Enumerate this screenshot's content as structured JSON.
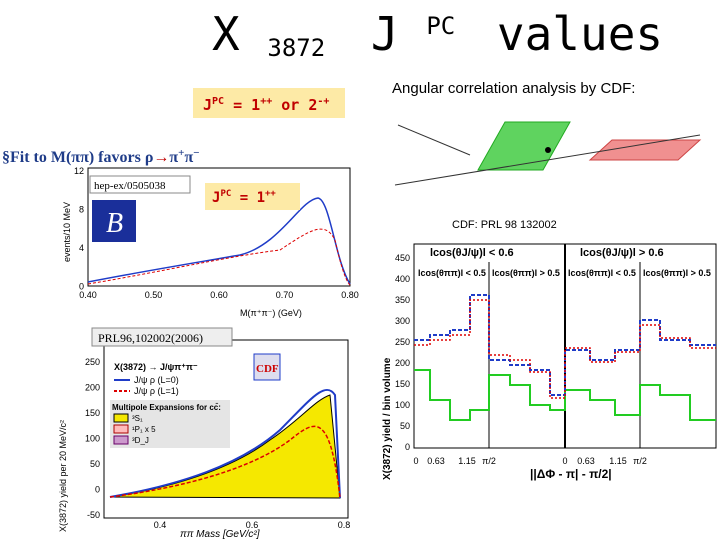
{
  "title": {
    "x": "X",
    "subscript": "3872",
    "j": "J",
    "superscript": "PC",
    "rest": "values"
  },
  "jpc_box": {
    "j": "J",
    "pc": "PC",
    "eq": " = 1",
    "pp": "++",
    "or": " or 2",
    "mp": "-+"
  },
  "angular_caption": "Angular correlation analysis by CDF:",
  "fit_text": {
    "lead": "§Fit to M(ππ) favors ρ",
    "arrow": "→",
    "pi": "π",
    "plus": "+",
    "pi2": "π",
    "minus": "−"
  },
  "plot1": {
    "ref": "hep-ex/0505038",
    "jpc": {
      "j": "J",
      "pc": "PC",
      "eq": " = 1",
      "pp": "++"
    },
    "ylabel": "events/10 MeV",
    "xlabel": "M(π⁺π⁻) (GeV)",
    "yticks": [
      "12",
      "8",
      "4",
      "0"
    ],
    "xticks": [
      "0.40",
      "0.50",
      "0.60",
      "0.70",
      "0.80"
    ]
  },
  "plot2": {
    "ref": "PRL96,102002(2006)",
    "legend_title": "X(3872) → J/ψπ⁺π⁻",
    "legend": [
      "J/ψ ρ (L=0)",
      "J/ψ ρ (L=1)"
    ],
    "multipole": "Multipole Expansions for cc̄:",
    "items": [
      "³S₁",
      "¹P₁ x 5",
      "³D_J"
    ],
    "logo": "CDF",
    "ylabel": "X(3872) yield per 20 MeV/c²",
    "xlabel": "ππ Mass [GeV/c²]",
    "yticks": [
      "250",
      "200",
      "150",
      "100",
      "50",
      "0",
      "-50"
    ],
    "xticks": [
      "0.4",
      "0.6",
      "0.8"
    ]
  },
  "plot3": {
    "caption": "CDF: PRL 98 132002",
    "top_left": "lcos(θJ/ψ)l < 0.6",
    "top_right": "lcos(θJ/ψ)l > 0.6",
    "panels": [
      "lcos(θππ)l < 0.5",
      "lcos(θππ)l > 0.5",
      "lcos(θππ)l < 0.5",
      "lcos(θππ)l > 0.5"
    ],
    "ylabel": "X(3872) yield / bin volume",
    "xlabel": "||ΔΦ - π| - π/2|",
    "yticks": [
      "450",
      "400",
      "350",
      "300",
      "250",
      "200",
      "150",
      "100",
      "50",
      "0"
    ],
    "xticks": [
      "0",
      "0.63",
      "1.15",
      "π/2",
      "0",
      "0.63",
      "1.15",
      "π/2"
    ]
  }
}
